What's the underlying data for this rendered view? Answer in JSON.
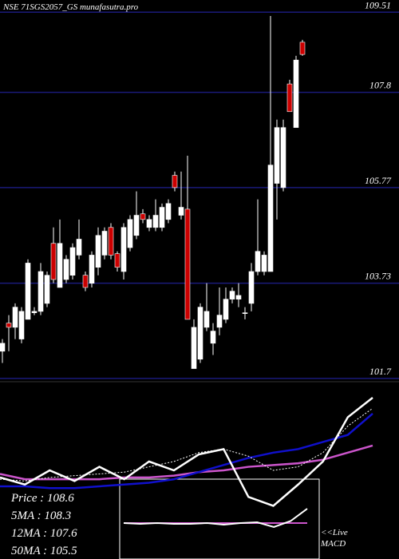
{
  "chart_data": [
    {
      "type": "candlestick",
      "title": "NSE 71SGS2057_GS munafasutra.pro",
      "ylim": [
        101.63,
        109.77
      ],
      "yticks": [
        109.51,
        107.8,
        105.77,
        103.73,
        101.7
      ],
      "grid": true,
      "up_color": "#ffffff",
      "down_color": "#cc0000",
      "open": [
        102.28,
        102.88,
        102.79,
        102.54,
        102.96,
        103.1,
        103.13,
        103.3,
        104.58,
        103.64,
        103.81,
        103.9,
        104.33,
        103.9,
        103.73,
        104.07,
        104.33,
        104.92,
        104.36,
        103.98,
        104.49,
        104.75,
        105.21,
        104.92,
        104.92,
        104.92,
        105.09,
        106.03,
        105.18,
        105.31,
        101.91,
        102.11,
        102.79,
        102.45,
        102.79,
        102.96,
        103.39,
        103.39,
        103.1,
        103.3,
        103.98,
        103.98,
        103.98,
        105.86,
        105.77,
        107.98,
        107.05,
        108.87
      ],
      "high": [
        102.54,
        103.05,
        103.3,
        103.22,
        104.24,
        103.22,
        104.16,
        103.98,
        104.92,
        105.09,
        104.33,
        104.58,
        105.09,
        103.98,
        104.41,
        104.92,
        104.92,
        105.01,
        104.41,
        105.01,
        105.18,
        105.69,
        105.31,
        105.18,
        105.52,
        105.43,
        105.52,
        106.11,
        106.11,
        106.45,
        102.96,
        103.3,
        103.73,
        102.88,
        103.64,
        103.64,
        103.64,
        103.73,
        103.22,
        104.16,
        105.52,
        104.41,
        109.43,
        107.22,
        107.22,
        108.07,
        108.58,
        108.92
      ],
      "low": [
        102.03,
        102.28,
        102.54,
        102.45,
        102.96,
        103.05,
        103.05,
        103.22,
        103.73,
        103.64,
        103.73,
        103.81,
        104.24,
        103.56,
        103.64,
        103.9,
        104.24,
        104.24,
        103.98,
        103.81,
        104.41,
        104.67,
        105.01,
        104.84,
        104.84,
        104.84,
        105.01,
        105.69,
        105.09,
        102.96,
        101.91,
        102.03,
        102.71,
        102.2,
        102.62,
        102.88,
        103.3,
        103.22,
        102.96,
        103.13,
        103.9,
        103.9,
        103.98,
        105.09,
        105.69,
        107.39,
        107.05,
        108.58
      ],
      "close": [
        102.45,
        102.79,
        103.22,
        103.13,
        104.16,
        103.13,
        103.98,
        103.9,
        103.81,
        104.58,
        104.24,
        104.49,
        104.67,
        103.64,
        104.33,
        104.75,
        104.84,
        104.33,
        104.07,
        104.92,
        105.09,
        105.18,
        105.09,
        105.09,
        105.18,
        105.35,
        105.43,
        105.77,
        105.35,
        102.96,
        102.79,
        103.22,
        103.13,
        102.71,
        103.05,
        103.39,
        103.56,
        103.47,
        103.1,
        103.98,
        104.41,
        104.33,
        106.25,
        107.05,
        107.05,
        107.39,
        108.49,
        108.61
      ]
    },
    {
      "type": "line",
      "xlim": [
        0,
        15
      ],
      "ylim": [
        0,
        100
      ],
      "series": [
        {
          "color": "#cc55cc",
          "values": [
            48,
            45,
            45,
            45,
            45,
            46,
            46,
            47,
            49,
            50,
            52,
            53,
            54,
            56,
            60,
            64
          ]
        },
        {
          "color": "#1010cc",
          "values": [
            41,
            41,
            40,
            40,
            41,
            42,
            43,
            45,
            49,
            53,
            57,
            60,
            62,
            66,
            70,
            82
          ]
        },
        {
          "color": "#ffffff",
          "dashed": true,
          "values": [
            45,
            44,
            46,
            47,
            48,
            49,
            52,
            55,
            60,
            62,
            58,
            50,
            52,
            60,
            75,
            85
          ]
        },
        {
          "color": "#ffffff",
          "values": [
            46,
            42,
            50,
            44,
            52,
            45,
            55,
            50,
            59,
            62,
            35,
            30,
            42,
            55,
            80,
            91
          ]
        }
      ],
      "legend": [
        "Price : 108.6",
        "5MA : 108.3",
        "12MA : 107.6",
        "50MA : 105.5"
      ]
    },
    {
      "type": "macd",
      "ylim": [
        -1,
        1
      ],
      "xlim": [
        0,
        11
      ],
      "label": "MACD",
      "live": "<<Live",
      "series": [
        {
          "color": "#cc55cc",
          "values": [
            -0.1,
            -0.1,
            -0.1,
            -0.1,
            -0.1,
            -0.1,
            -0.1,
            -0.1,
            -0.1,
            -0.1,
            -0.1,
            -0.1
          ]
        },
        {
          "color": "#ffffff",
          "values": [
            -0.1,
            -0.12,
            -0.1,
            -0.12,
            -0.12,
            -0.1,
            -0.14,
            -0.1,
            -0.08,
            -0.2,
            -0.05,
            0.26
          ]
        }
      ]
    }
  ]
}
